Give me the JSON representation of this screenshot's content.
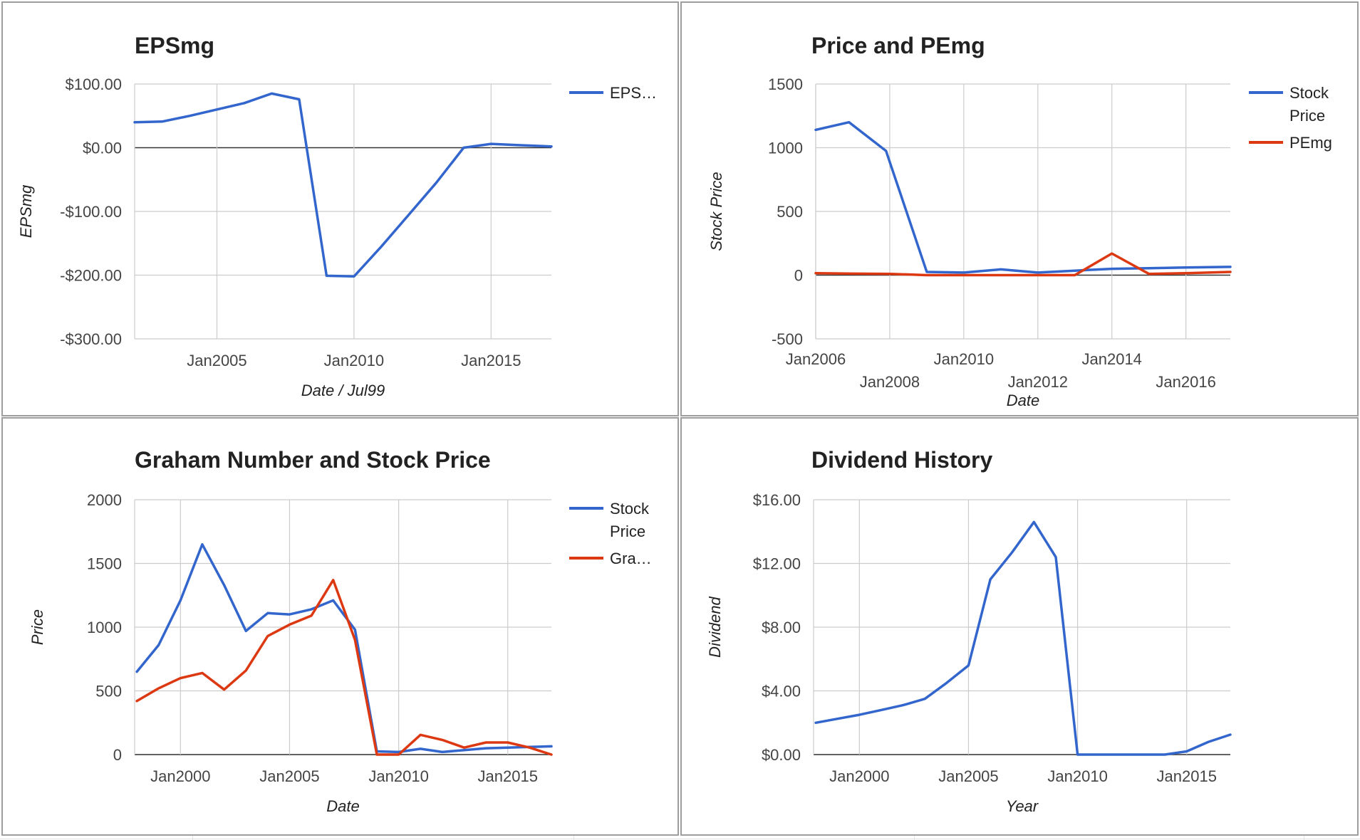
{
  "colors": {
    "blue": "#3366cc",
    "red": "#dc3912",
    "grid": "#cccccc",
    "zero_line": "#333333",
    "text": "#444444",
    "title": "#222222"
  },
  "chart_data": [
    {
      "type": "line",
      "title": "EPSmg",
      "xlabel": "Date / Jul99",
      "ylabel": "EPSmg",
      "ylim": [
        -300,
        100
      ],
      "y_ticks": [
        -300,
        -200,
        -100,
        0,
        100
      ],
      "y_tick_labels": [
        "-$300.00",
        "-$200.00",
        "-$100.00",
        "$0.00",
        "$100.00"
      ],
      "xlim": [
        2002.0,
        2017.2
      ],
      "x_ticks": [
        2005,
        2010,
        2015
      ],
      "x_tick_labels": [
        "Jan2005",
        "Jan2010",
        "Jan2015"
      ],
      "legend_position": "right",
      "grid": true,
      "series": [
        {
          "name": "EPS…",
          "color": "#3366cc",
          "x": [
            2002.0,
            2003.0,
            2004.0,
            2005.0,
            2006.0,
            2007.0,
            2008.0,
            2009.0,
            2010.0,
            2011.0,
            2012.0,
            2013.0,
            2014.0,
            2015.0,
            2016.0,
            2017.2
          ],
          "values": [
            40,
            41,
            50,
            60,
            70,
            85,
            76,
            -201,
            -202,
            -155,
            -105,
            -55,
            0,
            6,
            4,
            2
          ]
        }
      ]
    },
    {
      "type": "line",
      "title": "Price and PEmg",
      "xlabel": "Date",
      "ylabel": "Stock Price",
      "ylim": [
        -500,
        1500
      ],
      "y_ticks": [
        -500,
        0,
        500,
        1000,
        1500
      ],
      "y_tick_labels": [
        "-500",
        "0",
        "500",
        "1000",
        "1500"
      ],
      "xlim": [
        2006.0,
        2017.2
      ],
      "x_ticks": [
        2006,
        2008,
        2010,
        2012,
        2014,
        2016
      ],
      "x_tick_labels": [
        "Jan2006",
        "Jan2008",
        "Jan2010",
        "Jan2012",
        "Jan2014",
        "Jan2016"
      ],
      "x_tick_labels_staggered": true,
      "legend_position": "right",
      "grid": true,
      "series": [
        {
          "name": "Stock Price",
          "color": "#3366cc",
          "x": [
            2006.0,
            2006.9,
            2007.9,
            2009.0,
            2010.0,
            2011.0,
            2012.0,
            2013.0,
            2014.0,
            2015.0,
            2016.0,
            2017.2
          ],
          "values": [
            1140,
            1200,
            975,
            25,
            20,
            45,
            20,
            35,
            50,
            55,
            60,
            65
          ]
        },
        {
          "name": "PEmg",
          "color": "#dc3912",
          "x": [
            2006.0,
            2007.0,
            2008.0,
            2009.0,
            2010.0,
            2011.0,
            2012.0,
            2013.0,
            2014.0,
            2015.0,
            2016.0,
            2017.2
          ],
          "values": [
            15,
            12,
            10,
            0,
            0,
            0,
            0,
            0,
            170,
            10,
            15,
            25
          ]
        }
      ]
    },
    {
      "type": "line",
      "title": "Graham Number and Stock Price",
      "xlabel": "Date",
      "ylabel": "Price",
      "ylim": [
        0,
        2000
      ],
      "y_ticks": [
        0,
        500,
        1000,
        1500,
        2000
      ],
      "y_tick_labels": [
        "0",
        "500",
        "1000",
        "1500",
        "2000"
      ],
      "xlim": [
        1997.9,
        2017.0
      ],
      "x_ticks": [
        2000,
        2005,
        2010,
        2015
      ],
      "x_tick_labels": [
        "Jan2000",
        "Jan2005",
        "Jan2010",
        "Jan2015"
      ],
      "legend_position": "right",
      "grid": true,
      "series": [
        {
          "name": "Stock Price",
          "color": "#3366cc",
          "x": [
            1998.0,
            1999.0,
            2000.0,
            2001.0,
            2002.0,
            2003.0,
            2004.0,
            2005.0,
            2006.0,
            2007.0,
            2008.0,
            2009.0,
            2010.0,
            2011.0,
            2012.0,
            2013.0,
            2014.0,
            2015.0,
            2016.0,
            2017.0
          ],
          "values": [
            650,
            860,
            1210,
            1650,
            1330,
            970,
            1110,
            1100,
            1140,
            1210,
            980,
            25,
            20,
            45,
            20,
            35,
            50,
            55,
            60,
            65
          ]
        },
        {
          "name": "Gra…",
          "color": "#dc3912",
          "x": [
            1998.0,
            1999.0,
            2000.0,
            2001.0,
            2002.0,
            2003.0,
            2004.0,
            2005.0,
            2006.0,
            2007.0,
            2008.0,
            2009.0,
            2010.0,
            2011.0,
            2012.0,
            2013.0,
            2014.0,
            2015.0,
            2016.0,
            2017.0
          ],
          "values": [
            420,
            520,
            600,
            640,
            510,
            660,
            930,
            1020,
            1090,
            1370,
            900,
            0,
            0,
            155,
            115,
            55,
            95,
            95,
            55,
            0
          ]
        }
      ]
    },
    {
      "type": "line",
      "title": "Dividend History",
      "xlabel": "Year",
      "ylabel": "Dividend",
      "ylim": [
        0,
        16
      ],
      "y_ticks": [
        0,
        4,
        8,
        12,
        16
      ],
      "y_tick_labels": [
        "$0.00",
        "$4.00",
        "$8.00",
        "$12.00",
        "$16.00"
      ],
      "xlim": [
        1997.9,
        2017.0
      ],
      "x_ticks": [
        2000,
        2005,
        2010,
        2015
      ],
      "x_tick_labels": [
        "Jan2000",
        "Jan2005",
        "Jan2010",
        "Jan2015"
      ],
      "legend_position": "none",
      "grid": true,
      "series": [
        {
          "color": "#3366cc",
          "x": [
            1998.0,
            1999.0,
            2000.0,
            2001.0,
            2002.0,
            2003.0,
            2004.0,
            2005.0,
            2006.0,
            2007.0,
            2008.0,
            2009.0,
            2010.0,
            2011.0,
            2012.0,
            2013.0,
            2014.0,
            2015.0,
            2016.0,
            2017.0
          ],
          "values": [
            2.0,
            2.25,
            2.5,
            2.8,
            3.1,
            3.5,
            4.5,
            5.6,
            11.0,
            12.7,
            14.6,
            12.4,
            0,
            0,
            0,
            0,
            0,
            0.2,
            0.8,
            1.25
          ]
        }
      ]
    }
  ]
}
